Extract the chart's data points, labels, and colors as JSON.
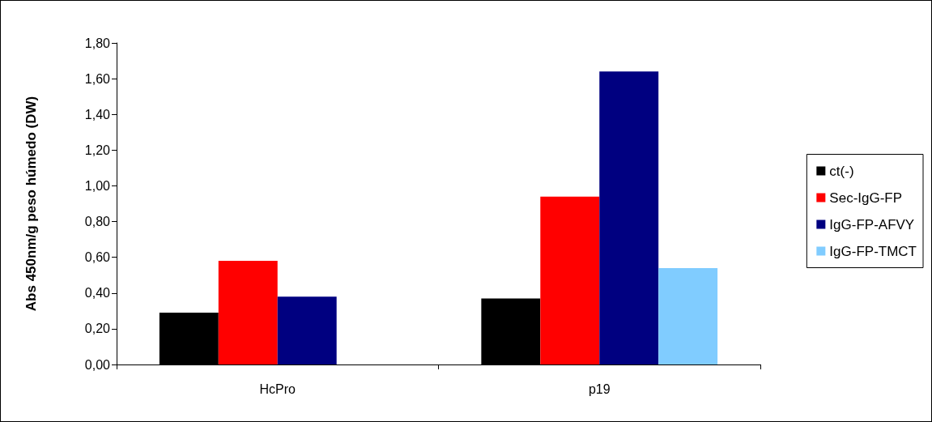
{
  "chart_data": {
    "type": "bar",
    "ylabel": "Abs 450nm/g peso húmedo (DW)",
    "categories": [
      "HcPro",
      "p19"
    ],
    "series": [
      {
        "name": "ct(-)",
        "color": "#000000",
        "values": [
          0.29,
          0.37
        ]
      },
      {
        "name": "Sec-IgG-FP",
        "color": "#ff0000",
        "values": [
          0.58,
          0.94
        ]
      },
      {
        "name": "IgG-FP-AFVY",
        "color": "#000080",
        "values": [
          0.38,
          1.64
        ]
      },
      {
        "name": "IgG-FP-TMCT",
        "color": "#80ccff",
        "values": [
          null,
          0.54
        ]
      }
    ],
    "ylim": [
      0,
      1.8
    ],
    "yticks": [
      {
        "value": 0,
        "label": "0,00"
      },
      {
        "value": 0.2,
        "label": "0,20"
      },
      {
        "value": 0.4,
        "label": "0,40"
      },
      {
        "value": 0.6,
        "label": "0,60"
      },
      {
        "value": 0.8,
        "label": "0,80"
      },
      {
        "value": 1,
        "label": "1,00"
      },
      {
        "value": 1.2,
        "label": "1,20"
      },
      {
        "value": 1.4,
        "label": "1,40"
      },
      {
        "value": 1.6,
        "label": "1,60"
      },
      {
        "value": 1.8,
        "label": "1,80"
      }
    ],
    "grid": false,
    "legend": "right"
  }
}
